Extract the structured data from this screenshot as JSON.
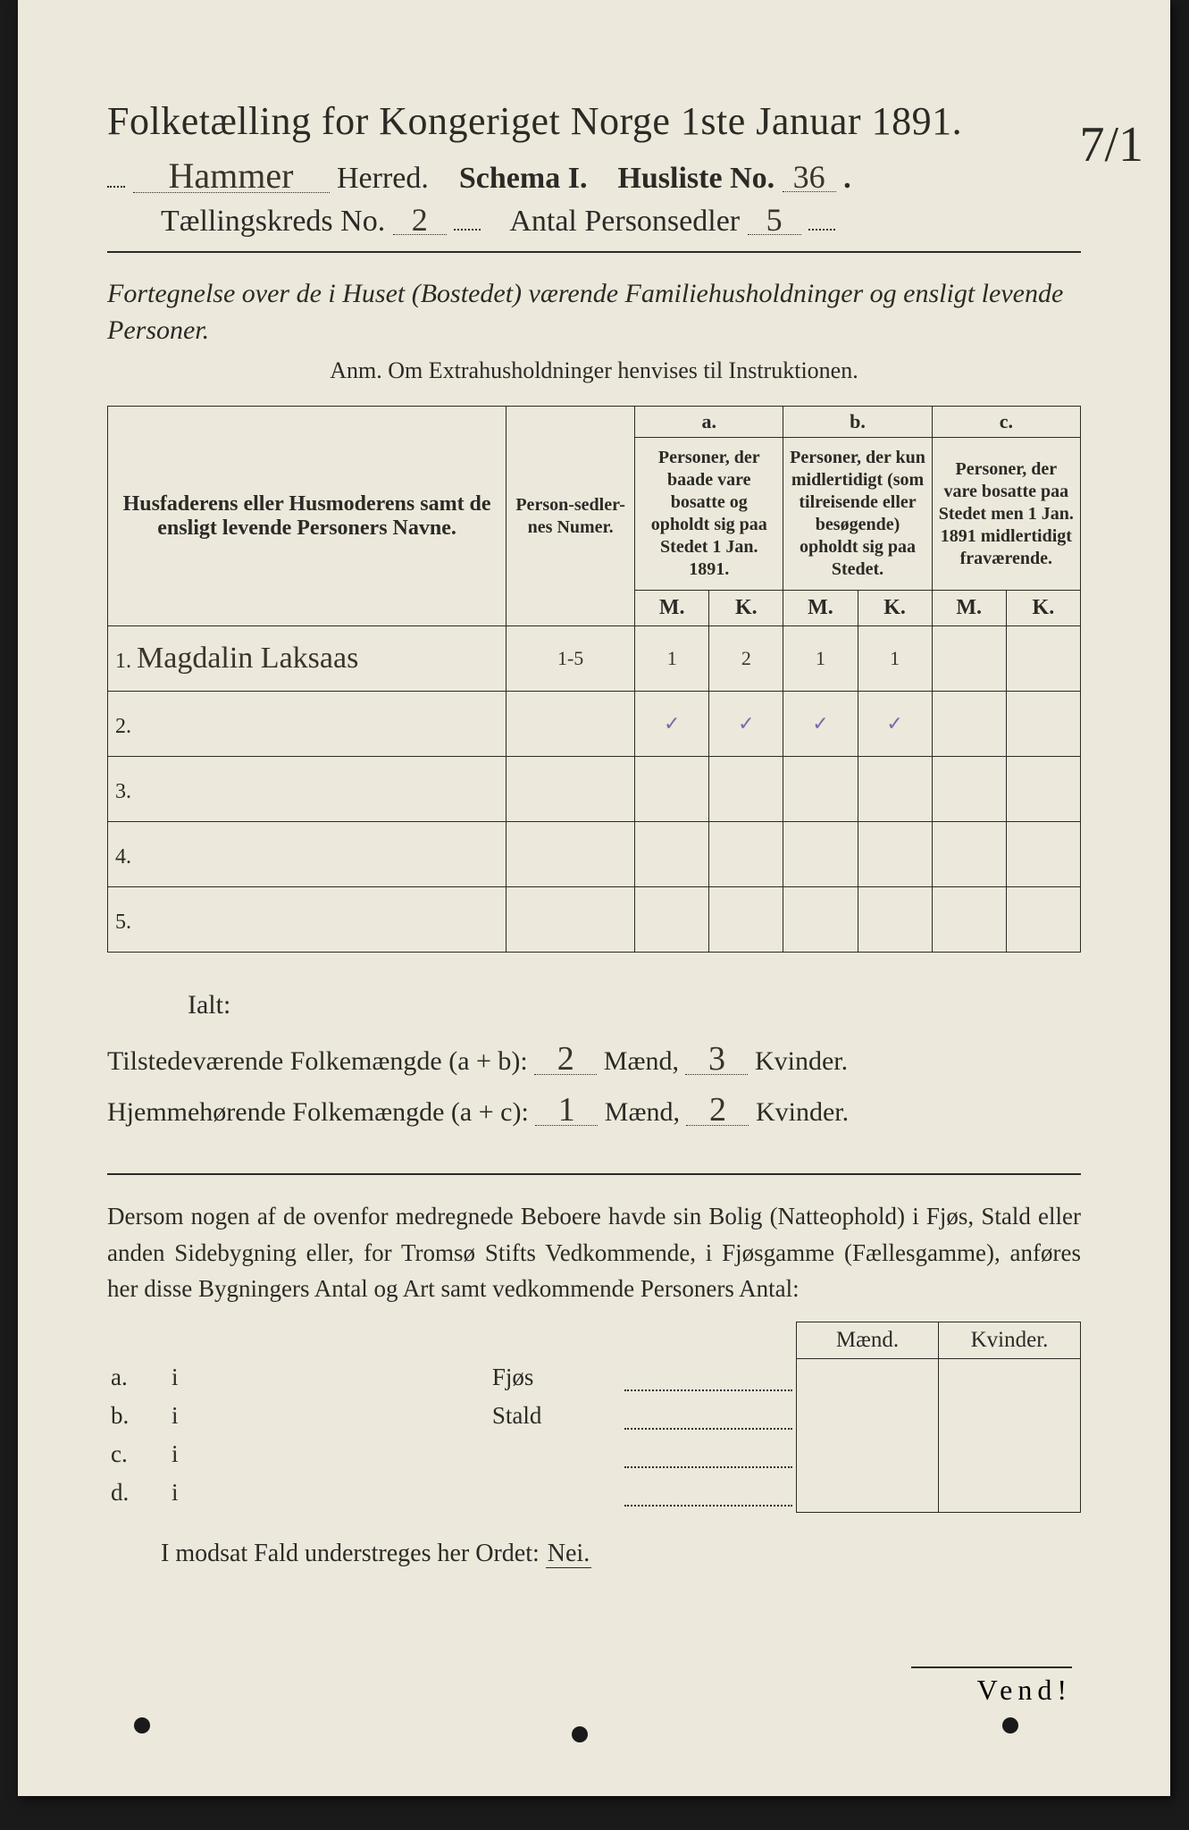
{
  "corner_mark": "7/1",
  "title": "Folketælling for Kongeriget Norge 1ste Januar 1891.",
  "line2": {
    "herred_value": "Hammer",
    "lbl_herred": "Herred.",
    "lbl_schema": "Schema I.",
    "lbl_husliste": "Husliste No.",
    "husliste_value": "36"
  },
  "line3": {
    "lbl_kreds": "Tællingskreds No.",
    "kreds_value": "2",
    "lbl_antal": "Antal Personsedler",
    "antal_value": "5"
  },
  "subhead": "Fortegnelse over de i Huset (Bostedet) værende Familiehusholdninger og ensligt levende Personer.",
  "anm": "Anm.  Om Extrahusholdninger henvises til Instruktionen.",
  "table": {
    "col_names": "Husfaderens eller Husmoderens samt de ensligt levende Personers Navne.",
    "col_num": "Person-sedler-nes Numer.",
    "grp_a_hdr": "a.",
    "grp_a": "Personer, der baade vare bosatte og opholdt sig paa Stedet 1 Jan. 1891.",
    "grp_b_hdr": "b.",
    "grp_b": "Personer, der kun midlertidigt (som tilreisende eller besøgende) opholdt sig paa Stedet.",
    "grp_c_hdr": "c.",
    "grp_c": "Personer, der vare bosatte paa Stedet men 1 Jan. 1891 midlertidigt fraværende.",
    "M": "M.",
    "K": "K.",
    "rows": [
      {
        "n": "1.",
        "name": "Magdalin Laksaas",
        "num": "1-5",
        "aM": "1",
        "aK": "2",
        "bM": "1",
        "bK": "1",
        "cM": "",
        "cK": ""
      },
      {
        "n": "2.",
        "name": "",
        "num": "",
        "aM": "✓",
        "aK": "✓",
        "bM": "✓",
        "bK": "✓",
        "cM": "",
        "cK": ""
      },
      {
        "n": "3.",
        "name": "",
        "num": "",
        "aM": "",
        "aK": "",
        "bM": "",
        "bK": "",
        "cM": "",
        "cK": ""
      },
      {
        "n": "4.",
        "name": "",
        "num": "",
        "aM": "",
        "aK": "",
        "bM": "",
        "bK": "",
        "cM": "",
        "cK": ""
      },
      {
        "n": "5.",
        "name": "",
        "num": "",
        "aM": "",
        "aK": "",
        "bM": "",
        "bK": "",
        "cM": "",
        "cK": ""
      }
    ]
  },
  "totals": {
    "ialt": "Ialt:",
    "line1_pre": "Tilstedeværende Folkemængde (a + b):",
    "line1_m": "2",
    "line1_k": "3",
    "line2_pre": "Hjemmehørende Folkemængde (a + c):",
    "line2_m": "1",
    "line2_k": "2",
    "lbl_m": "Mænd,",
    "lbl_k": "Kvinder."
  },
  "para": "Dersom nogen af de ovenfor medregnede Beboere havde sin Bolig (Natteophold) i Fjøs, Stald eller anden Sidebygning eller, for Tromsø Stifts Vedkommende, i Fjøsgamme (Fællesgamme), anføres her disse Bygningers Antal og Art samt vedkommende Personers Antal:",
  "side": {
    "h_m": "Mænd.",
    "h_k": "Kvinder.",
    "rows": [
      {
        "a": "a.",
        "i": "i",
        "lbl": "Fjøs"
      },
      {
        "a": "b.",
        "i": "i",
        "lbl": "Stald"
      },
      {
        "a": "c.",
        "i": "i",
        "lbl": ""
      },
      {
        "a": "d.",
        "i": "i",
        "lbl": ""
      }
    ]
  },
  "nei_line_pre": "I modsat Fald understreges her Ordet:",
  "nei": "Nei.",
  "vend": "Vend!"
}
